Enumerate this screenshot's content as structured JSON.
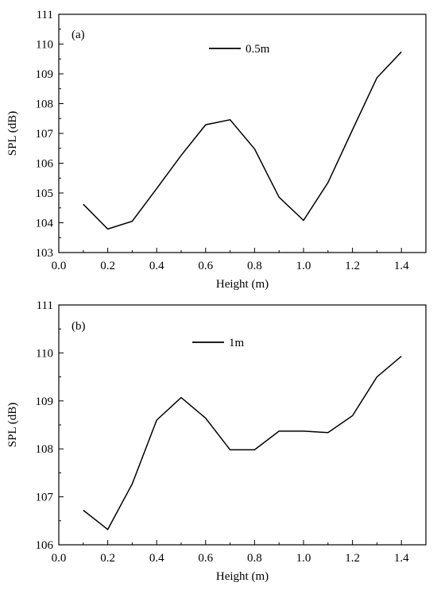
{
  "chart_data": [
    {
      "type": "line",
      "panel_label": "(a)",
      "xlabel": "Height (m)",
      "ylabel": "SPL (dB)",
      "xlim": [
        0.0,
        1.5
      ],
      "ylim": [
        103,
        111
      ],
      "x_ticks": [
        "0.0",
        "0.2",
        "0.4",
        "0.6",
        "0.8",
        "1.0",
        "1.2",
        "1.4"
      ],
      "y_ticks": [
        "103",
        "104",
        "105",
        "106",
        "107",
        "108",
        "109",
        "110",
        "111"
      ],
      "legend_position": "top-center",
      "series": [
        {
          "name": "0.5m",
          "color": "#000000",
          "x": [
            0.1,
            0.2,
            0.3,
            0.4,
            0.5,
            0.6,
            0.7,
            0.8,
            0.9,
            1.0,
            1.1,
            1.2,
            1.3,
            1.4
          ],
          "y": [
            104.62,
            103.79,
            104.05,
            105.15,
            106.26,
            107.29,
            107.46,
            106.48,
            104.86,
            104.08,
            105.35,
            107.12,
            108.87,
            109.74
          ]
        }
      ]
    },
    {
      "type": "line",
      "panel_label": "(b)",
      "xlabel": "Height (m)",
      "ylabel": "SPL (dB)",
      "xlim": [
        0.0,
        1.5
      ],
      "ylim": [
        106,
        111
      ],
      "x_ticks": [
        "0.0",
        "0.2",
        "0.4",
        "0.6",
        "0.8",
        "1.0",
        "1.2",
        "1.4"
      ],
      "y_ticks": [
        "106",
        "107",
        "108",
        "109",
        "110",
        "111"
      ],
      "legend_position": "top-center",
      "series": [
        {
          "name": "1m",
          "color": "#000000",
          "x": [
            0.1,
            0.2,
            0.3,
            0.4,
            0.5,
            0.6,
            0.7,
            0.8,
            0.9,
            1.0,
            1.1,
            1.2,
            1.3,
            1.4
          ],
          "y": [
            106.72,
            106.32,
            107.27,
            108.6,
            109.07,
            108.64,
            107.98,
            107.98,
            108.37,
            108.37,
            108.34,
            108.69,
            109.5,
            109.93
          ]
        }
      ]
    }
  ]
}
